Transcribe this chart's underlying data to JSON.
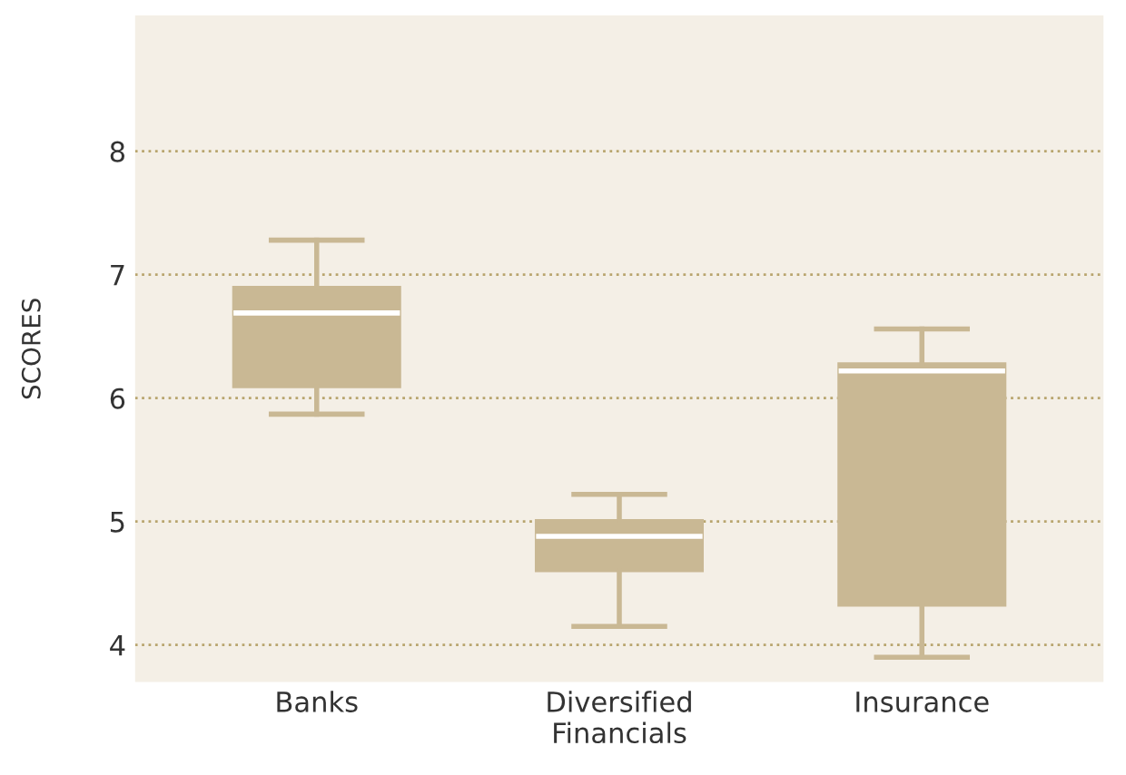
{
  "chart_data": {
    "type": "box",
    "ylabel": "SCORES",
    "categories": [
      "Banks",
      "Diversified\nFinancials",
      "Insurance"
    ],
    "boxes": [
      {
        "low": 5.87,
        "q1": 6.09,
        "median": 6.69,
        "q3": 6.9,
        "high": 7.28
      },
      {
        "low": 4.15,
        "q1": 4.6,
        "median": 4.88,
        "q3": 5.01,
        "high": 5.22
      },
      {
        "low": 3.9,
        "q1": 4.32,
        "median": 6.22,
        "q3": 6.28,
        "high": 6.56
      }
    ],
    "color": "#c9b894",
    "ylim": [
      3.7,
      9.1
    ],
    "yticks": [
      4,
      5,
      6,
      7,
      8
    ],
    "grid": "y",
    "legend": false
  }
}
